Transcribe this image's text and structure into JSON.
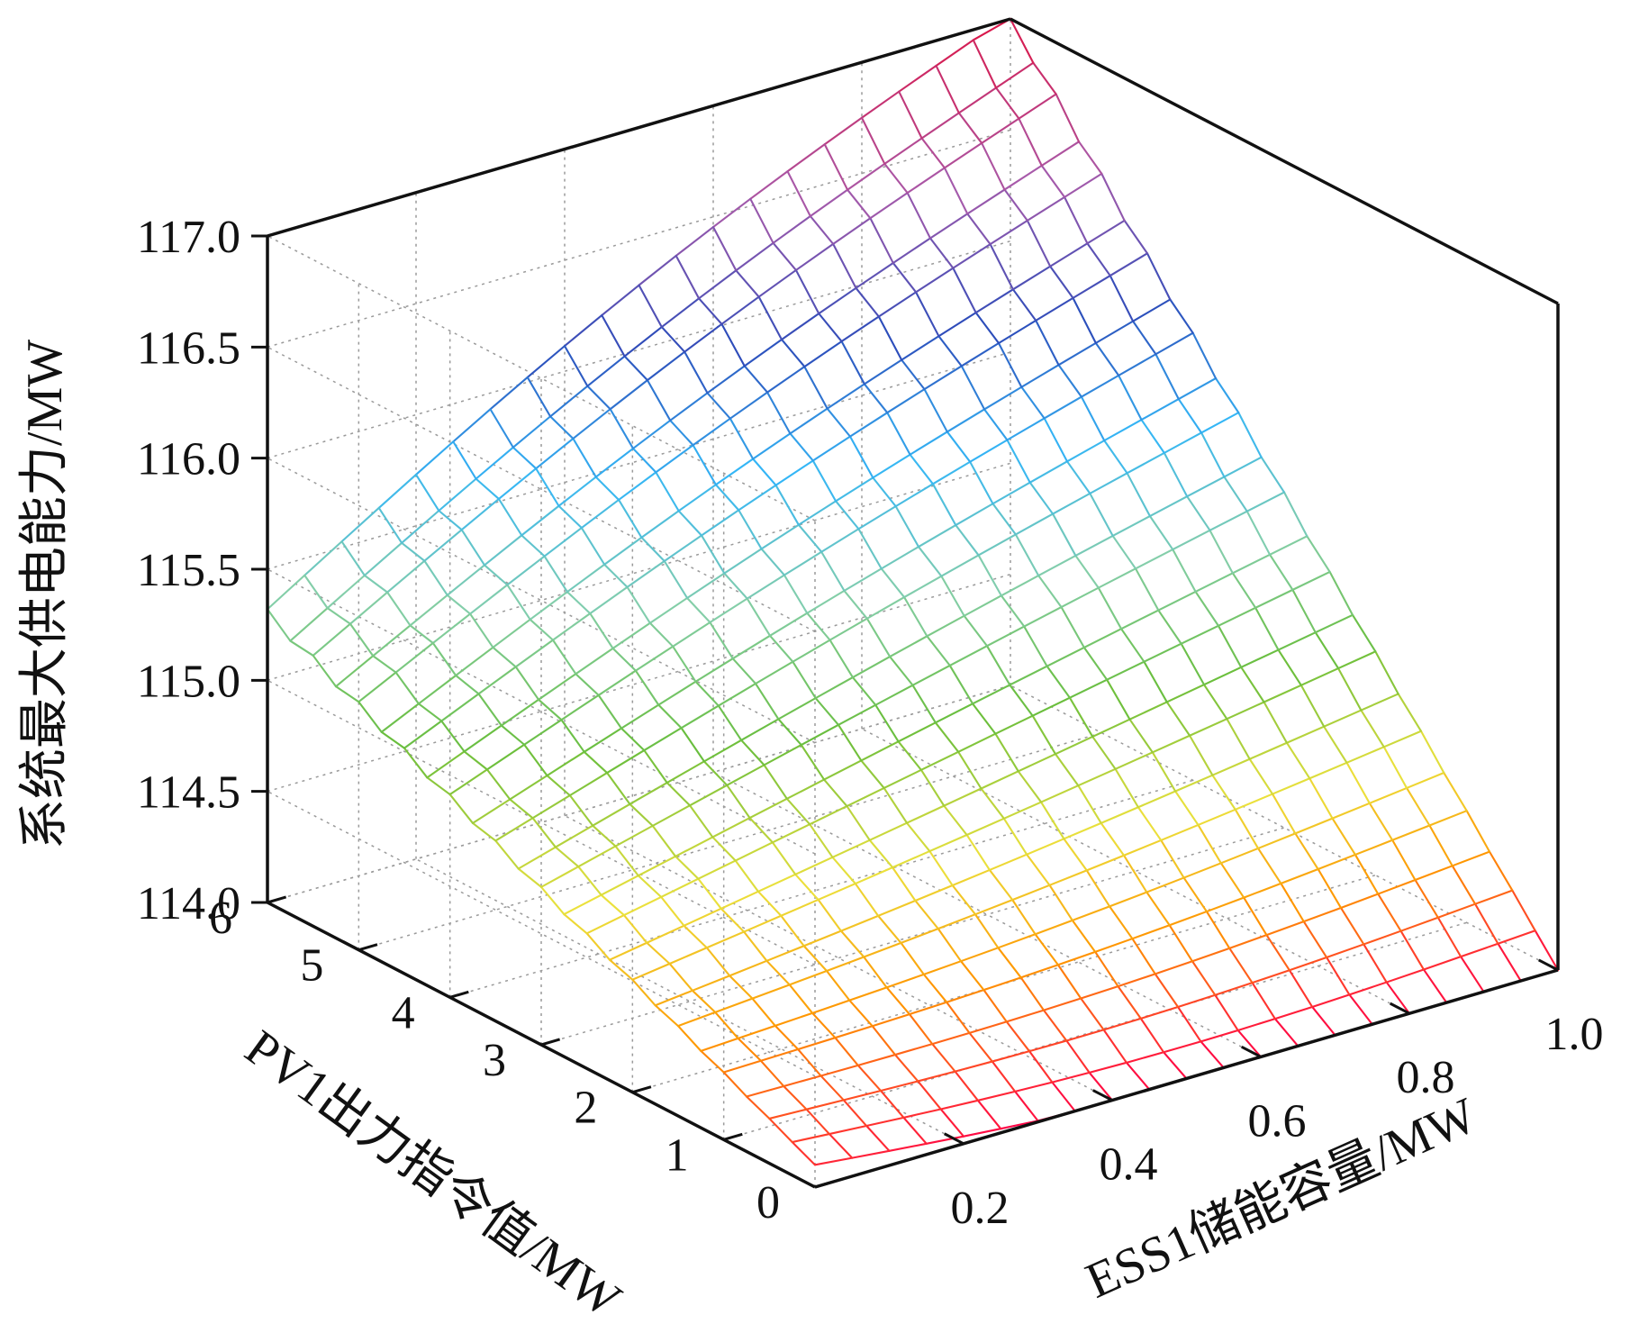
{
  "chart_data": {
    "type": "surface3d",
    "axes": {
      "z": {
        "label": "系统最大供电能力/MW",
        "range": [
          114.0,
          117.0
        ],
        "tick_labels": [
          "114.0",
          "114.5",
          "115.0",
          "115.5",
          "116.0",
          "116.5",
          "117.0"
        ],
        "ticks": [
          114.0,
          114.5,
          115.0,
          115.5,
          116.0,
          116.5,
          117.0
        ]
      },
      "x": {
        "label": "ESS1储能容量/MW",
        "range": [
          0,
          1.0
        ],
        "tick_labels": [
          "0.2",
          "0.4",
          "0.6",
          "0.8",
          "1.0"
        ],
        "ticks": [
          0.2,
          0.4,
          0.6,
          0.8,
          1.0
        ]
      },
      "y": {
        "label": "PV1出力指令值/MW",
        "range": [
          0,
          6
        ],
        "tick_labels": [
          "0",
          "1",
          "2",
          "3",
          "4",
          "5",
          "6"
        ],
        "ticks": [
          0,
          1,
          2,
          3,
          4,
          5,
          6
        ]
      }
    },
    "grid": true,
    "colormap": "jet",
    "surface_model": {
      "ess_values": [
        0.0,
        0.05,
        0.1,
        0.15,
        0.2,
        0.25,
        0.3,
        0.35,
        0.4,
        0.45,
        0.5,
        0.55,
        0.6,
        0.65,
        0.7,
        0.75,
        0.8,
        0.85,
        0.9,
        0.95,
        1.0
      ],
      "pv_values": [
        0.0,
        0.25,
        0.5,
        0.75,
        1.0,
        1.25,
        1.5,
        1.75,
        2.0,
        2.25,
        2.5,
        2.75,
        3.0,
        3.25,
        3.5,
        3.75,
        4.0,
        4.25,
        4.5,
        4.75,
        5.0,
        5.25,
        5.5,
        5.75,
        6.0
      ],
      "corner_values": {
        "ess_0_pv_0": 114.1,
        "ess_1_pv_0": 114.0,
        "ess_0_pv_6": 115.3,
        "ess_1_pv_6": 117.0
      }
    }
  }
}
